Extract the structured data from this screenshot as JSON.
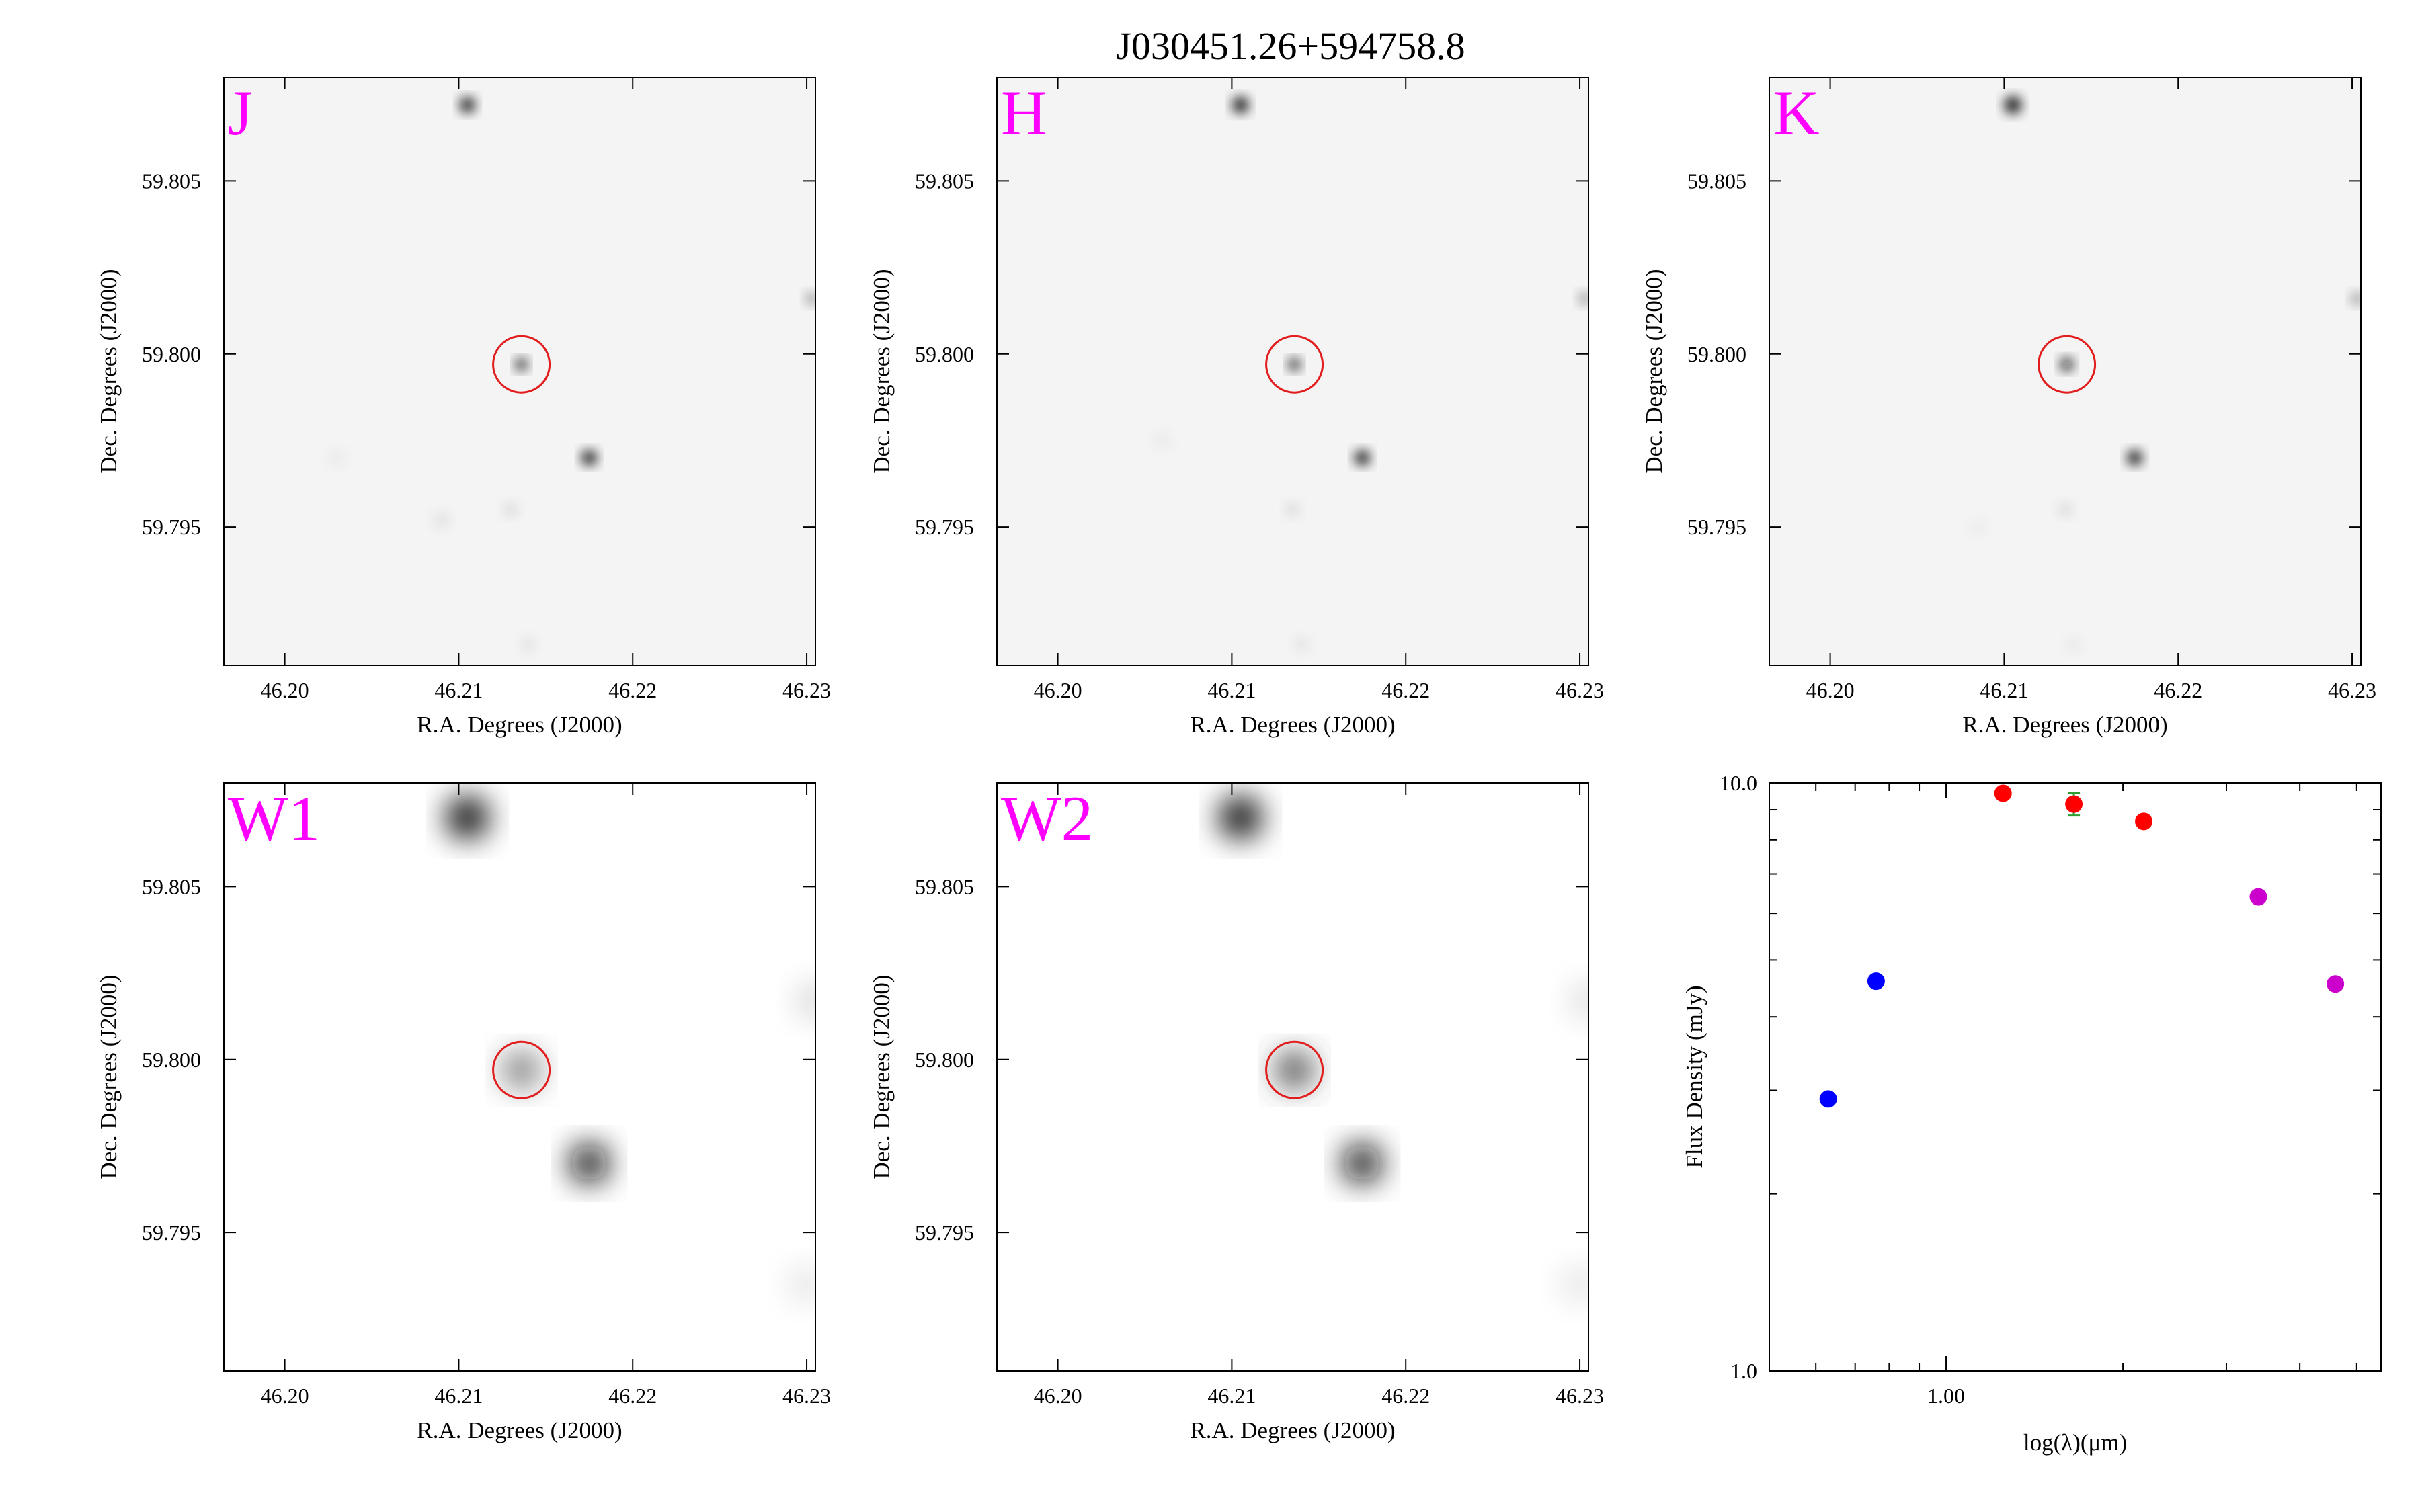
{
  "title": "J030451.26+594758.8",
  "colors": {
    "band_label": "#ff00ff",
    "aperture": "#e11d1d",
    "sed_blue": "#0000ff",
    "sed_red": "#ff0000",
    "sed_magenta": "#cc00cc",
    "errbar": "#2e9e2e"
  },
  "image_axes": {
    "xlabel": "R.A. Degrees (J2000)",
    "ylabel": "Dec. Degrees (J2000)",
    "xlim": [
      46.1965,
      46.2305
    ],
    "ylim": [
      59.791,
      59.808
    ],
    "xticks": [
      "46.20",
      "46.21",
      "46.22",
      "46.23"
    ],
    "yticks": [
      "59.795",
      "59.800",
      "59.805"
    ],
    "target_ra": 46.2136,
    "target_dec": 59.7997
  },
  "panels": [
    {
      "band": "J",
      "type": "image",
      "blur": 0.9,
      "sources": [
        {
          "ra": 46.2105,
          "dec": 59.8072,
          "flux": 1.0,
          "size": 0.00042
        },
        {
          "ra": 46.2136,
          "dec": 59.7997,
          "flux": 0.95,
          "size": 0.00033
        },
        {
          "ra": 46.2175,
          "dec": 59.797,
          "flux": 1.0,
          "size": 0.00042
        },
        {
          "ra": 46.2303,
          "dec": 59.8016,
          "flux": 0.45,
          "size": 0.00035
        },
        {
          "ra": 46.209,
          "dec": 59.7952,
          "flux": 0.12,
          "size": 0.00045
        },
        {
          "ra": 46.213,
          "dec": 59.7955,
          "flux": 0.15,
          "size": 0.0004
        },
        {
          "ra": 46.203,
          "dec": 59.797,
          "flux": 0.08,
          "size": 0.00055
        },
        {
          "ra": 46.214,
          "dec": 59.7916,
          "flux": 0.12,
          "size": 0.0004
        }
      ]
    },
    {
      "band": "H",
      "type": "image",
      "blur": 0.9,
      "sources": [
        {
          "ra": 46.2105,
          "dec": 59.8072,
          "flux": 1.0,
          "size": 0.00045
        },
        {
          "ra": 46.2136,
          "dec": 59.7997,
          "flux": 0.95,
          "size": 0.00033
        },
        {
          "ra": 46.2175,
          "dec": 59.797,
          "flux": 1.0,
          "size": 0.00042
        },
        {
          "ra": 46.2303,
          "dec": 59.8016,
          "flux": 0.45,
          "size": 0.00035
        },
        {
          "ra": 46.2135,
          "dec": 59.7955,
          "flux": 0.15,
          "size": 0.0004
        },
        {
          "ra": 46.206,
          "dec": 59.7975,
          "flux": 0.07,
          "size": 0.0006
        },
        {
          "ra": 46.214,
          "dec": 59.7916,
          "flux": 0.12,
          "size": 0.0004
        }
      ]
    },
    {
      "band": "K",
      "type": "image",
      "blur": 0.9,
      "sources": [
        {
          "ra": 46.2105,
          "dec": 59.8072,
          "flux": 1.0,
          "size": 0.00048
        },
        {
          "ra": 46.2136,
          "dec": 59.7997,
          "flux": 0.95,
          "size": 0.00036
        },
        {
          "ra": 46.2175,
          "dec": 59.797,
          "flux": 1.0,
          "size": 0.00042
        },
        {
          "ra": 46.2303,
          "dec": 59.8016,
          "flux": 0.45,
          "size": 0.00035
        },
        {
          "ra": 46.2135,
          "dec": 59.7955,
          "flux": 0.15,
          "size": 0.0004
        },
        {
          "ra": 46.2085,
          "dec": 59.795,
          "flux": 0.08,
          "size": 0.00045
        },
        {
          "ra": 46.214,
          "dec": 59.7916,
          "flux": 0.1,
          "size": 0.0004
        }
      ]
    },
    {
      "band": "W1",
      "type": "image",
      "blur": 2.2,
      "sources": [
        {
          "ra": 46.2105,
          "dec": 59.807,
          "flux": 1.0,
          "size": 0.0012
        },
        {
          "ra": 46.2136,
          "dec": 59.7997,
          "flux": 0.55,
          "size": 0.00105
        },
        {
          "ra": 46.2175,
          "dec": 59.797,
          "flux": 0.95,
          "size": 0.0011
        },
        {
          "ra": 46.2305,
          "dec": 59.8017,
          "flux": 0.15,
          "size": 0.0011
        },
        {
          "ra": 46.23,
          "dec": 59.7935,
          "flux": 0.1,
          "size": 0.0011
        }
      ]
    },
    {
      "band": "W2",
      "type": "image",
      "blur": 2.2,
      "sources": [
        {
          "ra": 46.2105,
          "dec": 59.807,
          "flux": 1.0,
          "size": 0.0012
        },
        {
          "ra": 46.2136,
          "dec": 59.7997,
          "flux": 0.75,
          "size": 0.00105
        },
        {
          "ra": 46.2175,
          "dec": 59.797,
          "flux": 0.95,
          "size": 0.0011
        },
        {
          "ra": 46.2305,
          "dec": 59.8017,
          "flux": 0.12,
          "size": 0.0011
        },
        {
          "ra": 46.23,
          "dec": 59.7935,
          "flux": 0.1,
          "size": 0.0011
        }
      ]
    }
  ],
  "chart_data": {
    "type": "scatter",
    "xlabel": "log(λ)(μm)",
    "ylabel": "Flux Density (mJy)",
    "x_scale": "log",
    "y_scale": "log",
    "xlim": [
      0.5,
      5.5
    ],
    "ylim": [
      1.0,
      10.0
    ],
    "xtick_labels": [
      {
        "value": 1.0,
        "label": "1.00"
      }
    ],
    "ytick_labels": [
      {
        "value": 1.0,
        "label": "1.0"
      },
      {
        "value": 10.0,
        "label": "10.0"
      }
    ],
    "series": [
      {
        "color": "#0000ff",
        "x": [
          0.63,
          0.76
        ],
        "y": [
          2.9,
          4.6
        ],
        "yerr": [
          0,
          0
        ]
      },
      {
        "color": "#ff0000",
        "x": [
          1.25,
          1.65,
          2.17
        ],
        "y": [
          9.6,
          9.2,
          8.6
        ],
        "yerr": [
          0.1,
          0.4,
          0.15
        ]
      },
      {
        "color": "#cc00cc",
        "x": [
          3.4,
          4.6
        ],
        "y": [
          6.4,
          4.55
        ],
        "yerr": [
          0.1,
          0.1
        ]
      }
    ]
  }
}
